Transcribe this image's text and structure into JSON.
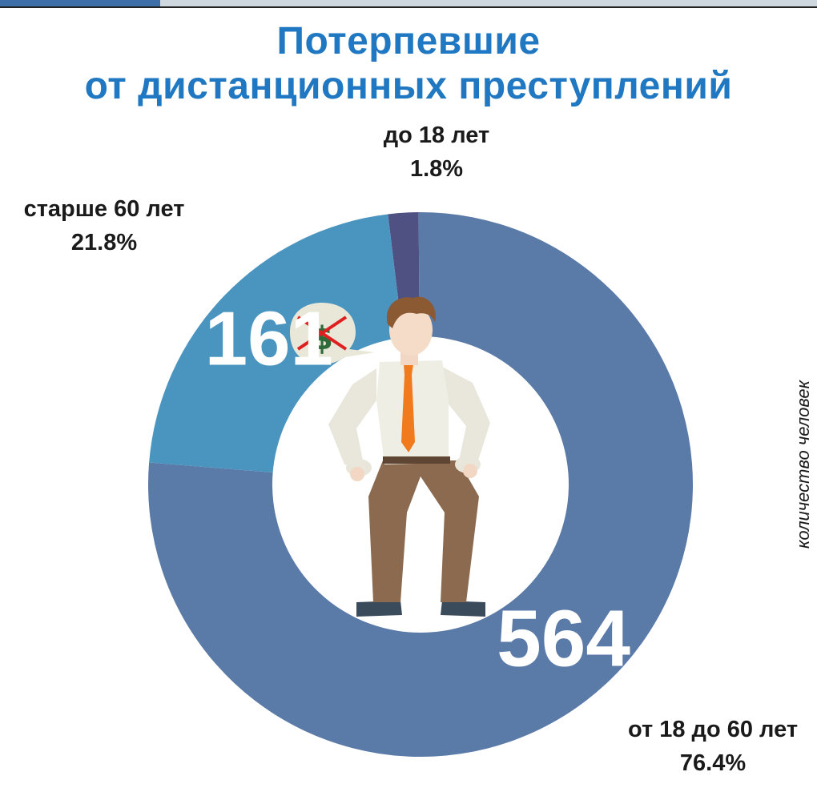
{
  "title_line1": "Потерпевшие",
  "title_line2": "от дистанционных преступлений",
  "side_caption": "количество человек",
  "colors": {
    "title": "#1f78c1",
    "slice_mid": "#5a7aa8",
    "slice_old": "#4a94c0",
    "slice_young": "#4f5183"
  },
  "icons": [
    "man-empty-pockets-icon",
    "no-money-icon"
  ],
  "chart_data": {
    "type": "pie",
    "subtype": "donut",
    "slices": [
      {
        "label": "до 18 лет",
        "percent": "1.8%",
        "value": 1.8,
        "count": "",
        "color": "#4f5183"
      },
      {
        "label": "от 18 до 60 лет",
        "percent": "76.4%",
        "value": 76.4,
        "count": "564",
        "color": "#5a7aa8"
      },
      {
        "label": "старше 60 лет",
        "percent": "21.8%",
        "value": 21.8,
        "count": "161",
        "color": "#4a94c0"
      }
    ]
  }
}
